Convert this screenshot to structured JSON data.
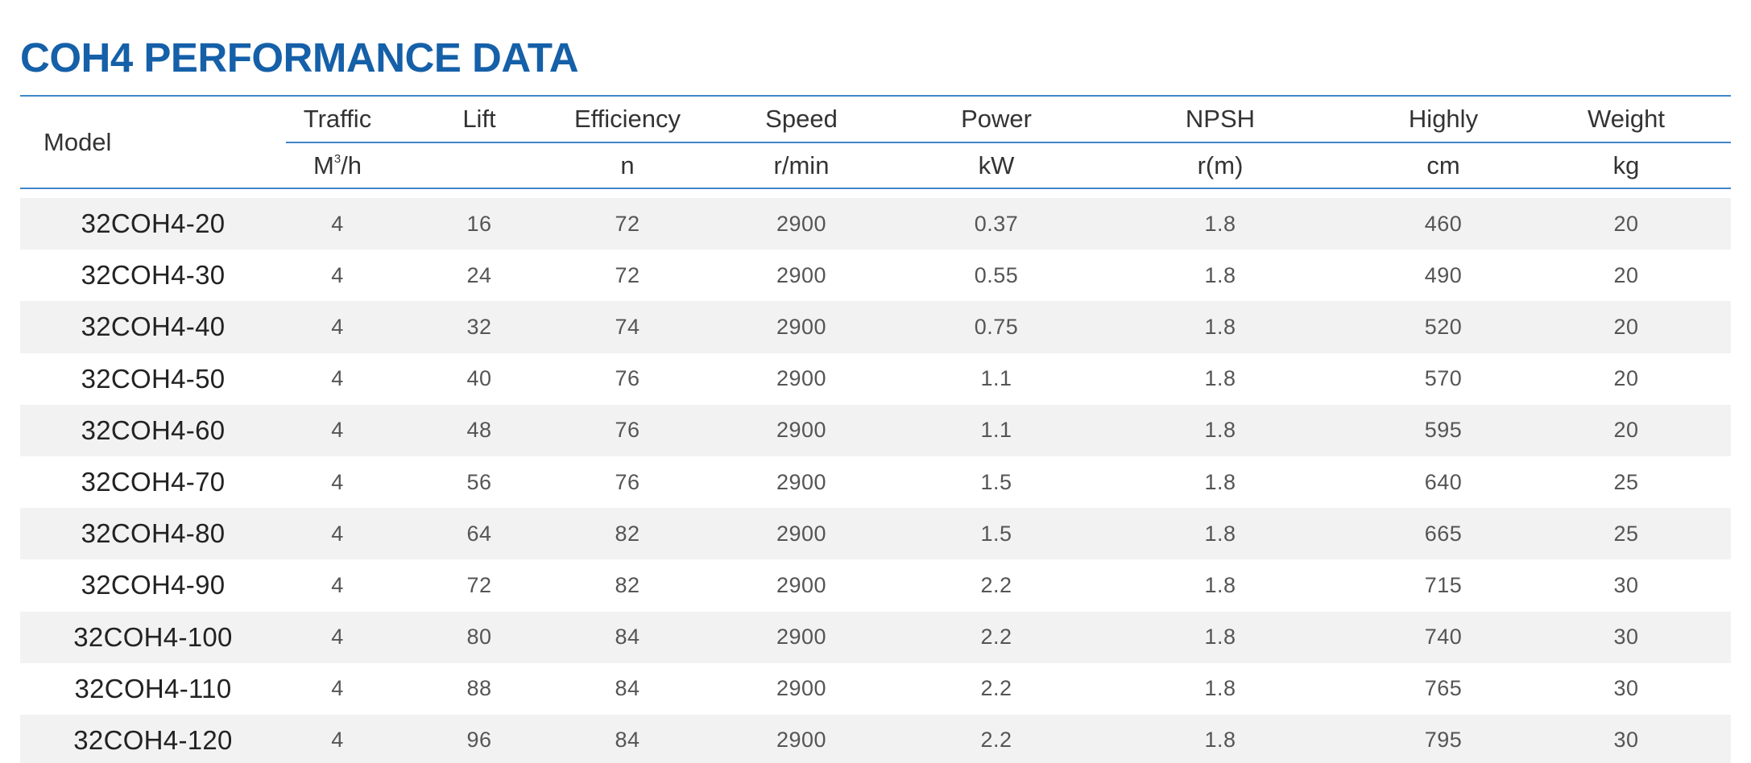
{
  "title": "COH4 PERFORMANCE DATA",
  "colors": {
    "title": "#1560a8",
    "rule": "#3f86c8",
    "stripe": "#f2f2f2"
  },
  "header": {
    "model": "Model",
    "columns": [
      {
        "label": "Traffic",
        "unit": "M³/h"
      },
      {
        "label": "Lift",
        "unit": ""
      },
      {
        "label": "Efficiency",
        "unit": "n"
      },
      {
        "label": "Speed",
        "unit": "r/min"
      },
      {
        "label": "Power",
        "unit": "kW"
      },
      {
        "label": "NPSH",
        "unit": "r(m)"
      },
      {
        "label": "Highly",
        "unit": "cm"
      },
      {
        "label": "Weight",
        "unit": "kg"
      }
    ]
  },
  "rows": [
    [
      "32COH4-20",
      "4",
      "16",
      "72",
      "2900",
      "0.37",
      "1.8",
      "460",
      "20"
    ],
    [
      "32COH4-30",
      "4",
      "24",
      "72",
      "2900",
      "0.55",
      "1.8",
      "490",
      "20"
    ],
    [
      "32COH4-40",
      "4",
      "32",
      "74",
      "2900",
      "0.75",
      "1.8",
      "520",
      "20"
    ],
    [
      "32COH4-50",
      "4",
      "40",
      "76",
      "2900",
      "1.1",
      "1.8",
      "570",
      "20"
    ],
    [
      "32COH4-60",
      "4",
      "48",
      "76",
      "2900",
      "1.1",
      "1.8",
      "595",
      "20"
    ],
    [
      "32COH4-70",
      "4",
      "56",
      "76",
      "2900",
      "1.5",
      "1.8",
      "640",
      "25"
    ],
    [
      "32COH4-80",
      "4",
      "64",
      "82",
      "2900",
      "1.5",
      "1.8",
      "665",
      "25"
    ],
    [
      "32COH4-90",
      "4",
      "72",
      "82",
      "2900",
      "2.2",
      "1.8",
      "715",
      "30"
    ],
    [
      "32COH4-100",
      "4",
      "80",
      "84",
      "2900",
      "2.2",
      "1.8",
      "740",
      "30"
    ],
    [
      "32COH4-110",
      "4",
      "88",
      "84",
      "2900",
      "2.2",
      "1.8",
      "765",
      "30"
    ],
    [
      "32COH4-120",
      "4",
      "96",
      "84",
      "2900",
      "2.2",
      "1.8",
      "795",
      "30"
    ]
  ]
}
